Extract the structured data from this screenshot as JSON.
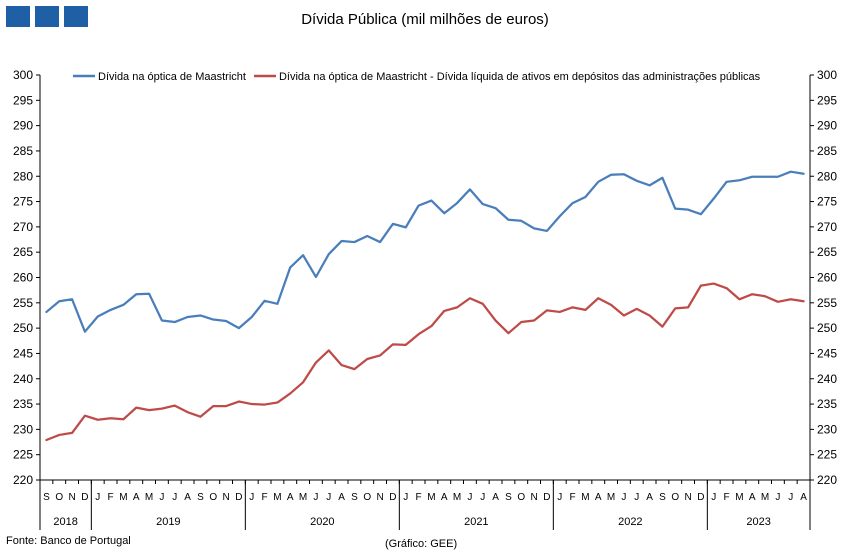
{
  "header": {
    "title": "Dívida Pública (mil milhões de euros)"
  },
  "footer": {
    "source": "Fonte: Banco de Portugal",
    "credit": "(Gráfico: GEE)"
  },
  "colors": {
    "series_1": "#4a7ebb",
    "series_2": "#be4b48",
    "logo": "#1f5fa6"
  },
  "chart_data": {
    "type": "line",
    "title": "Dívida Pública (mil milhões de euros)",
    "ylim": [
      220,
      300
    ],
    "ytick_step": 5,
    "y2lim": [
      220,
      300
    ],
    "grid": false,
    "legend_position": "top",
    "x_months": [
      "S",
      "O",
      "N",
      "D",
      "J",
      "F",
      "M",
      "A",
      "M",
      "J",
      "J",
      "A",
      "S",
      "O",
      "N",
      "D",
      "J",
      "F",
      "M",
      "A",
      "M",
      "J",
      "J",
      "A",
      "S",
      "O",
      "N",
      "D",
      "J",
      "F",
      "M",
      "A",
      "M",
      "J",
      "J",
      "A",
      "S",
      "O",
      "N",
      "D",
      "J",
      "F",
      "M",
      "A",
      "M",
      "J",
      "J",
      "A",
      "S",
      "O",
      "N",
      "D",
      "J",
      "F",
      "M",
      "A",
      "M",
      "J",
      "J",
      "A"
    ],
    "years": [
      {
        "label": "2018",
        "start": 0,
        "count": 4
      },
      {
        "label": "2019",
        "start": 4,
        "count": 12
      },
      {
        "label": "2020",
        "start": 16,
        "count": 12
      },
      {
        "label": "2021",
        "start": 28,
        "count": 12
      },
      {
        "label": "2022",
        "start": 40,
        "count": 12
      },
      {
        "label": "2023",
        "start": 52,
        "count": 8
      }
    ],
    "series": [
      {
        "name": "Dívida na óptica de Maastricht",
        "values": [
          253.2,
          255.3,
          255.7,
          249.3,
          252.3,
          253.6,
          254.6,
          256.7,
          256.8,
          251.5,
          251.2,
          252.2,
          252.5,
          251.7,
          251.4,
          250.0,
          252.2,
          255.4,
          254.8,
          262.0,
          264.4,
          260.1,
          264.6,
          267.2,
          267.0,
          268.2,
          267.0,
          270.6,
          269.9,
          274.2,
          275.2,
          272.7,
          274.7,
          277.4,
          274.5,
          273.7,
          271.4,
          271.2,
          269.7,
          269.2,
          272.1,
          274.7,
          275.9,
          278.9,
          280.3,
          280.4,
          279.1,
          278.2,
          279.7,
          273.6,
          273.4,
          272.5,
          275.6,
          278.9,
          279.2,
          279.9,
          279.9,
          279.9,
          280.9,
          280.5
        ]
      },
      {
        "name": "Dívida na óptica de Maastricht - Dívida líquida de ativos em depósitos das administrações públicas",
        "values": [
          227.9,
          228.9,
          229.3,
          232.7,
          231.9,
          232.2,
          232.0,
          234.3,
          233.8,
          234.1,
          234.7,
          233.4,
          232.5,
          234.6,
          234.6,
          235.5,
          235.0,
          234.9,
          235.3,
          237.1,
          239.3,
          243.2,
          245.6,
          242.7,
          241.9,
          243.9,
          244.6,
          246.8,
          246.7,
          248.8,
          250.4,
          253.4,
          254.1,
          255.9,
          254.8,
          251.5,
          249.0,
          251.2,
          251.5,
          253.5,
          253.2,
          254.1,
          253.6,
          255.9,
          254.6,
          252.5,
          253.8,
          252.5,
          250.3,
          253.9,
          254.1,
          258.4,
          258.8,
          257.9,
          255.7,
          256.7,
          256.3,
          255.2,
          255.7,
          255.3
        ]
      }
    ]
  }
}
